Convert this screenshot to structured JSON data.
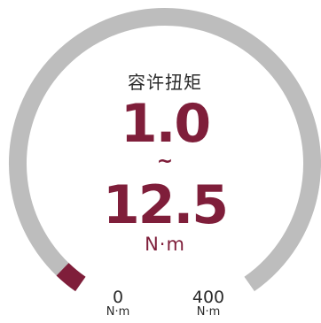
{
  "gauge": {
    "title": "容许扭矩",
    "min_value": "1.0",
    "separator": "~",
    "max_value": "12.5",
    "unit": "N·m",
    "scale_min": "0",
    "scale_min_unit": "N·m",
    "scale_max": "400",
    "scale_max_unit": "N·m",
    "range_min": 0,
    "range_max": 400,
    "fill_fraction": 0.03125,
    "colors": {
      "track": "#bdbdbd",
      "fill": "#7f1e3a",
      "accent_text": "#7f1e3a"
    }
  }
}
